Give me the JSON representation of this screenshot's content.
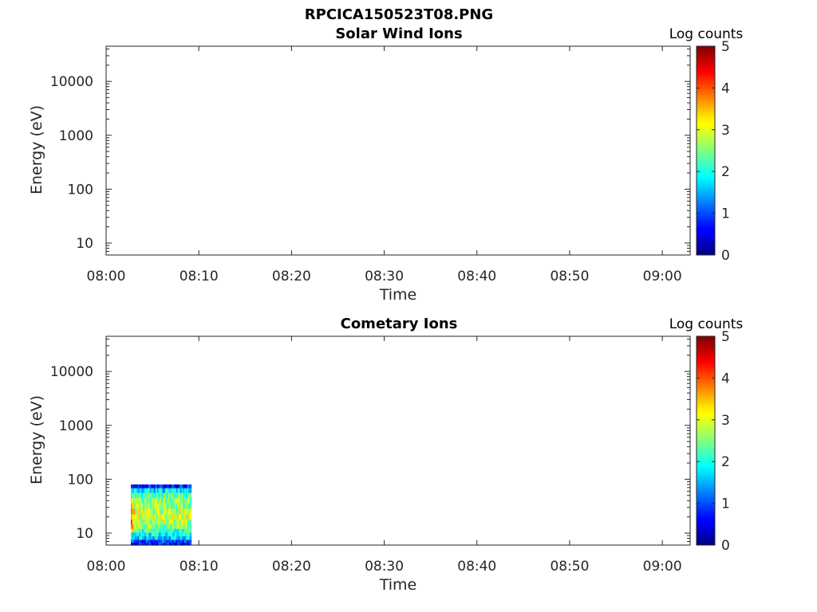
{
  "figure": {
    "title": "RPCICA150523T08.PNG"
  },
  "chart_data": [
    {
      "type": "heatmap",
      "title": "Solar Wind Ions",
      "xlabel": "Time",
      "ylabel": "Energy (eV)",
      "y_scale": "log",
      "ylim": [
        6,
        45000
      ],
      "xlim": [
        "08:00",
        "09:03"
      ],
      "x_ticks": [
        "08:00",
        "08:10",
        "08:20",
        "08:30",
        "08:40",
        "08:50",
        "09:00"
      ],
      "y_ticks": [
        "10",
        "100",
        "1000",
        "10000"
      ],
      "colorbar": {
        "label": "Log counts",
        "range": [
          0,
          5
        ],
        "ticks": [
          "0",
          "1",
          "2",
          "3",
          "4",
          "5"
        ],
        "colormap": "jet"
      },
      "data": []
    },
    {
      "type": "heatmap",
      "title": "Cometary Ions",
      "xlabel": "Time",
      "ylabel": "Energy (eV)",
      "y_scale": "log",
      "ylim": [
        6,
        45000
      ],
      "xlim": [
        "08:00",
        "09:03"
      ],
      "x_ticks": [
        "08:00",
        "08:10",
        "08:20",
        "08:30",
        "08:40",
        "08:50",
        "09:00"
      ],
      "y_ticks": [
        "10",
        "100",
        "1000",
        "10000"
      ],
      "colorbar": {
        "label": "Log counts",
        "range": [
          0,
          5
        ],
        "ticks": [
          "0",
          "1",
          "2",
          "3",
          "4",
          "5"
        ],
        "colormap": "jet"
      },
      "data_extent": {
        "time_start": "08:02:40",
        "time_end": "08:09:10",
        "energy_min": 6,
        "energy_max": 80
      },
      "energy_profile": [
        {
          "energy": 75,
          "log_counts": 0.8
        },
        {
          "energy": 62,
          "log_counts": 1.8
        },
        {
          "energy": 50,
          "log_counts": 2.3
        },
        {
          "energy": 40,
          "log_counts": 2.5
        },
        {
          "energy": 32,
          "log_counts": 2.6
        },
        {
          "energy": 25,
          "log_counts": 2.8
        },
        {
          "energy": 20,
          "log_counts": 2.9
        },
        {
          "energy": 16,
          "log_counts": 2.8
        },
        {
          "energy": 13,
          "log_counts": 2.6
        },
        {
          "energy": 11,
          "log_counts": 2.2
        },
        {
          "energy": 9.5,
          "log_counts": 2.0
        },
        {
          "energy": 8,
          "log_counts": 1.6
        },
        {
          "energy": 7,
          "log_counts": 1.0
        },
        {
          "energy": 6.3,
          "log_counts": 0.7
        }
      ]
    }
  ]
}
